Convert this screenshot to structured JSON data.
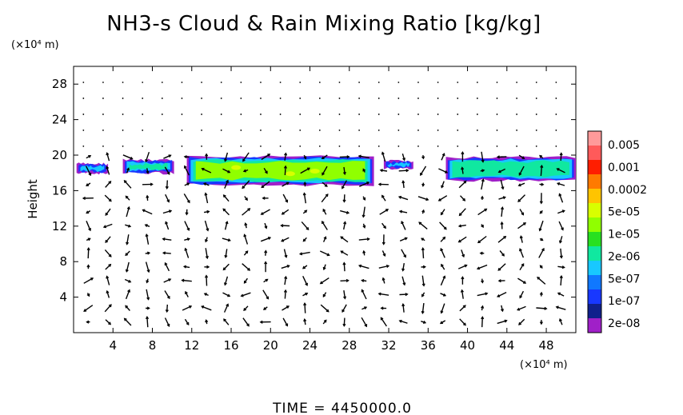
{
  "chart_data": {
    "type": "heatmap",
    "title": "NH3-s Cloud & Rain Mixing Ratio [kg/kg]",
    "ylabel": "Height",
    "y_unit": "(×10⁴ m)",
    "x_unit": "(×10⁴ m)",
    "xlabel": "",
    "xlim": [
      0,
      51
    ],
    "ylim": [
      0,
      30
    ],
    "x_ticks": [
      "4",
      "8",
      "12",
      "16",
      "20",
      "24",
      "28",
      "32",
      "36",
      "40",
      "44",
      "48"
    ],
    "y_ticks": [
      "4",
      "8",
      "12",
      "16",
      "20",
      "24",
      "28"
    ],
    "colorbar": {
      "labels": [
        "0.005",
        "0.001",
        "0.0002",
        "5e-05",
        "1e-05",
        "2e-06",
        "5e-07",
        "1e-07",
        "2e-08"
      ],
      "colors": [
        "#ff9a9a",
        "#ff5a5a",
        "#ff1e00",
        "#ff7a00",
        "#ffc400",
        "#d8ff00",
        "#90ff00",
        "#28e020",
        "#10e8a0",
        "#18c8ff",
        "#1078ff",
        "#1838ff",
        "#10208c",
        "#a020c8"
      ]
    },
    "cloud_layers": [
      {
        "x_start": 0.3,
        "x_end": 3.5,
        "y_bottom": 17.8,
        "y_top": 19.2,
        "level": "5e-07"
      },
      {
        "x_start": 5.0,
        "x_end": 10.2,
        "y_bottom": 17.8,
        "y_top": 19.6,
        "level": "2e-06"
      },
      {
        "x_start": 11.5,
        "x_end": 30.5,
        "y_bottom": 16.5,
        "y_top": 20.0,
        "level": "1e-05"
      },
      {
        "x_start": 31.5,
        "x_end": 34.5,
        "y_bottom": 18.3,
        "y_top": 19.5,
        "level": "5e-07"
      },
      {
        "x_start": 37.8,
        "x_end": 51.0,
        "y_bottom": 17.0,
        "y_top": 19.9,
        "level": "2e-06"
      }
    ],
    "grid": false,
    "legend": "colorbar right"
  },
  "footer": {
    "time_label": "TIME  =  4450000.0"
  },
  "vector_field": {
    "description_id": "wind-arrows"
  }
}
